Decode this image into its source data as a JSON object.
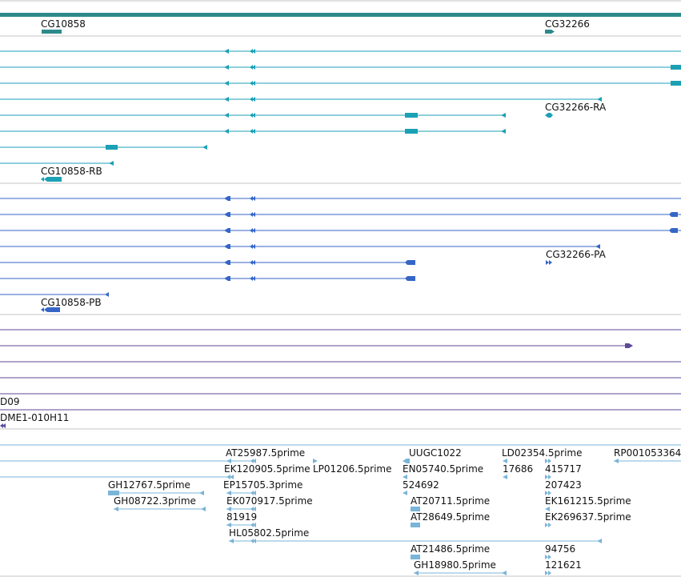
{
  "colors": {
    "gene_track": "#2d8a8a",
    "transcript_rna": "#1ba0b4",
    "protein": "#3566c7",
    "purple": "#5c4a99",
    "est": "#7ab4d8",
    "divider": "#c4c4c4"
  },
  "track_labels": {
    "gene_left": "CG10858",
    "gene_right": "CG32266",
    "rna_right": "CG32266-RA",
    "rna_left": "CG10858-RB",
    "protein_right": "CG32266-PA",
    "protein_left": "CG10858-PB",
    "clone_1": "D09",
    "clone_2": "DME1-010H11"
  },
  "est_labels": [
    "AT25987.5prime",
    "UUGC1022",
    "LD02354.5prime",
    "RP001053364",
    "EK120905.5prime",
    "LP01206.5prime",
    "EN05740.5prime",
    "17686",
    "415717",
    "GH12767.5prime",
    "EP15705.3prime",
    "524692",
    "207423",
    "GH08722.3prime",
    "EK070917.5prime",
    "AT20711.5prime",
    "EK161215.5prime",
    "81919",
    "AT28649.5prime",
    "EK269637.5prime",
    "HL05802.5prime",
    "AT21486.5prime",
    "94756",
    "GH18980.5prime",
    "121621"
  ]
}
